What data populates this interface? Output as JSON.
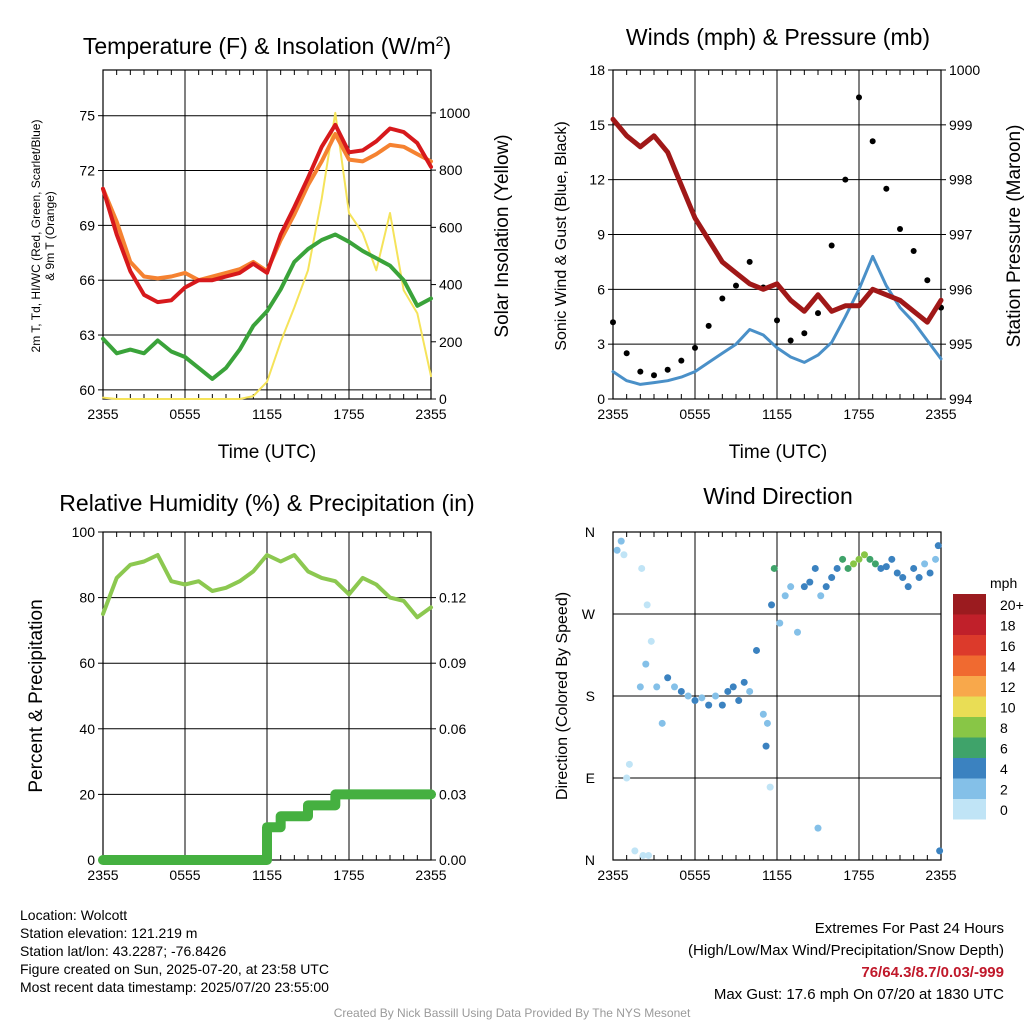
{
  "colors": {
    "temp": "#d7191c",
    "temp9m": "#f58231",
    "dew": "#3aa33a",
    "solar": "#f5e35a",
    "wind": "#4a90c8",
    "gust": "#000000",
    "pressure": "#a01818",
    "rh": "#8cc850",
    "precip": "#45b040",
    "grid": "#000000"
  },
  "time_ticks": [
    "2355",
    "0555",
    "1155",
    "1755",
    "2355"
  ],
  "panels": {
    "temperature": {
      "title_prefix": "Temperature (F) & Insolation (W/m",
      "title_sup": "2",
      "title_suffix": ")",
      "ylabel_line1": "2m T, Td, HI/WC (Red, Green, Scarlet/Blue)",
      "ylabel_line2": "& 9m T (Orange)",
      "ylabel2": "Solar Insolation (Yellow)",
      "xlabel": "Time (UTC)"
    },
    "winds": {
      "title": "Winds (mph) & Pressure (mb)",
      "ylabel": "Sonic Wind & Gust (Blue, Black)",
      "ylabel2": "Station Pressure (Maroon)",
      "xlabel": "Time (UTC)"
    },
    "humidity": {
      "title": "Relative Humidity (%) & Precipitation (in)",
      "ylabel": "Percent & Precipitation"
    },
    "direction": {
      "title": "Wind Direction",
      "ylabel": "Direction (Colored By Speed)",
      "legend_title": "mph",
      "legend": [
        {
          "label": "20+",
          "color": "#9b1b1f"
        },
        {
          "label": "18",
          "color": "#c0202a"
        },
        {
          "label": "16",
          "color": "#dc3a2b"
        },
        {
          "label": "14",
          "color": "#f06a30"
        },
        {
          "label": "12",
          "color": "#f8a84b"
        },
        {
          "label": "10",
          "color": "#e9dd55"
        },
        {
          "label": "8",
          "color": "#88c646"
        },
        {
          "label": "6",
          "color": "#3fa36a"
        },
        {
          "label": "4",
          "color": "#3b82c0"
        },
        {
          "label": "2",
          "color": "#84c0e8"
        },
        {
          "label": "0",
          "color": "#c0e4f6"
        }
      ]
    }
  },
  "chart_data": [
    {
      "type": "line",
      "title": "Temperature (F) & Insolation (W/m2)",
      "xlabel": "Time (UTC)",
      "ylabel": "2m T, Td, HI/WC (Red, Green, Scarlet/Blue) & 9m T (Orange)",
      "y2label": "Solar Insolation (Yellow)",
      "x_ticks": [
        "2355",
        "0555",
        "1155",
        "1755",
        "2355"
      ],
      "x": [
        0,
        1,
        2,
        3,
        4,
        5,
        6,
        7,
        8,
        9,
        10,
        11,
        12,
        13,
        14,
        15,
        16,
        17,
        18,
        19,
        20,
        21,
        22,
        23,
        24
      ],
      "ylim": [
        59.5,
        77.5
      ],
      "y_ticks": [
        60,
        63,
        66,
        69,
        72,
        75
      ],
      "y2lim": [
        0,
        1150
      ],
      "y2_ticks": [
        0,
        200,
        400,
        600,
        800,
        1000
      ],
      "series": [
        {
          "name": "2m T",
          "axis": "left",
          "values": [
            71,
            68.5,
            66.5,
            65.2,
            64.8,
            64.9,
            65.6,
            66,
            66,
            66.2,
            66.4,
            66.9,
            66.4,
            68.5,
            70,
            71.6,
            73.3,
            74.5,
            73,
            73.1,
            73.6,
            74.3,
            74.1,
            73.5,
            72.2
          ]
        },
        {
          "name": "9m T",
          "axis": "left",
          "values": [
            71,
            69.2,
            67,
            66.2,
            66.1,
            66.2,
            66.4,
            66,
            66.2,
            66.4,
            66.6,
            67,
            66.5,
            68.2,
            69.6,
            71.2,
            72.5,
            74,
            72.6,
            72.5,
            72.9,
            73.4,
            73.3,
            72.9,
            72.5
          ]
        },
        {
          "name": "Td",
          "axis": "left",
          "values": [
            62.8,
            62,
            62.2,
            62,
            62.7,
            62.1,
            61.8,
            61.2,
            60.6,
            61.2,
            62.2,
            63.5,
            64.3,
            65.5,
            67,
            67.7,
            68.2,
            68.5,
            68.1,
            67.6,
            67.2,
            66.8,
            66,
            64.6,
            65
          ]
        },
        {
          "name": "Solar",
          "axis": "right",
          "values": [
            5,
            0,
            0,
            0,
            0,
            0,
            0,
            0,
            0,
            0,
            0,
            10,
            60,
            200,
            320,
            450,
            700,
            1000,
            650,
            580,
            450,
            650,
            380,
            300,
            80
          ]
        }
      ]
    },
    {
      "type": "line",
      "title": "Winds (mph) & Pressure (mb)",
      "xlabel": "Time (UTC)",
      "ylabel": "Sonic Wind & Gust (Blue, Black)",
      "y2label": "Station Pressure (Maroon)",
      "x_ticks": [
        "2355",
        "0555",
        "1155",
        "1755",
        "2355"
      ],
      "x": [
        0,
        1,
        2,
        3,
        4,
        5,
        6,
        7,
        8,
        9,
        10,
        11,
        12,
        13,
        14,
        15,
        16,
        17,
        18,
        19,
        20,
        21,
        22,
        23,
        24
      ],
      "ylim": [
        0,
        18
      ],
      "y_ticks": [
        0,
        3,
        6,
        9,
        12,
        15,
        18
      ],
      "y2lim": [
        994,
        1000
      ],
      "y2_ticks": [
        994,
        995,
        996,
        997,
        998,
        999,
        1000
      ],
      "series": [
        {
          "name": "Sonic Wind",
          "axis": "left",
          "values": [
            1.5,
            1,
            0.8,
            0.9,
            1,
            1.2,
            1.5,
            2,
            2.5,
            3,
            3.8,
            3.5,
            2.8,
            2.3,
            2,
            2.4,
            3.1,
            4.5,
            6,
            7.8,
            6.2,
            5,
            4.2,
            3.2,
            2.2
          ]
        },
        {
          "name": "Gust",
          "axis": "left",
          "values": [
            4.2,
            2.5,
            1.5,
            1.3,
            1.6,
            2.1,
            2.8,
            4,
            5.5,
            6.2,
            7.5,
            6.1,
            4.3,
            3.2,
            3.6,
            4.7,
            8.4,
            12,
            16.5,
            14.1,
            11.5,
            9.3,
            8.1,
            6.5,
            5
          ]
        },
        {
          "name": "Station Pressure",
          "axis": "right",
          "values": [
            999.1,
            998.8,
            998.6,
            998.8,
            998.5,
            997.9,
            997.3,
            996.9,
            996.5,
            996.3,
            996.1,
            996,
            996.1,
            995.8,
            995.6,
            995.9,
            995.6,
            995.7,
            995.7,
            996,
            995.9,
            995.8,
            995.6,
            995.4,
            995.8
          ]
        }
      ]
    },
    {
      "type": "line",
      "title": "Relative Humidity (%) & Precipitation (in)",
      "ylabel": "Percent & Precipitation",
      "x_ticks": [
        "2355",
        "0555",
        "1155",
        "1755",
        "2355"
      ],
      "x": [
        0,
        1,
        2,
        3,
        4,
        5,
        6,
        7,
        8,
        9,
        10,
        11,
        12,
        13,
        14,
        15,
        16,
        17,
        18,
        19,
        20,
        21,
        22,
        23,
        24
      ],
      "ylim": [
        0,
        100
      ],
      "y_ticks": [
        0,
        20,
        40,
        60,
        80,
        100
      ],
      "y2lim": [
        0,
        0.15
      ],
      "y2_ticks": [
        "0.00",
        "0.03",
        "0.06",
        "0.09",
        "0.12"
      ],
      "series": [
        {
          "name": "Relative Humidity",
          "axis": "left",
          "values": [
            75,
            86,
            90,
            91,
            93,
            85,
            84,
            85,
            82,
            83,
            85,
            88,
            93,
            91,
            93,
            88,
            86,
            85,
            81,
            86,
            84,
            80,
            79,
            74,
            77
          ]
        },
        {
          "name": "Precipitation",
          "axis": "right",
          "values": [
            0,
            0,
            0,
            0,
            0,
            0,
            0,
            0,
            0,
            0,
            0,
            0,
            0.015,
            0.02,
            0.02,
            0.025,
            0.025,
            0.03,
            0.03,
            0.03,
            0.03,
            0.03,
            0.03,
            0.03,
            0.03
          ]
        }
      ]
    },
    {
      "type": "scatter",
      "title": "Wind Direction",
      "ylabel": "Direction (Colored By Speed)",
      "x_ticks": [
        "2355",
        "0555",
        "1155",
        "1755",
        "2355"
      ],
      "y_ticks": [
        "N",
        "E",
        "S",
        "W",
        "N"
      ],
      "xlim": [
        0,
        24
      ],
      "ylim": [
        0,
        360
      ],
      "points": [
        {
          "x": 0.3,
          "y": 340,
          "mph": 2
        },
        {
          "x": 0.6,
          "y": 350,
          "mph": 2
        },
        {
          "x": 0.8,
          "y": 335,
          "mph": 0
        },
        {
          "x": 1.0,
          "y": 90,
          "mph": 0
        },
        {
          "x": 1.2,
          "y": 105,
          "mph": 0
        },
        {
          "x": 1.6,
          "y": 10,
          "mph": 0
        },
        {
          "x": 2.2,
          "y": 5,
          "mph": 0
        },
        {
          "x": 2.6,
          "y": 5,
          "mph": 0
        },
        {
          "x": 2.1,
          "y": 320,
          "mph": 0
        },
        {
          "x": 2.5,
          "y": 280,
          "mph": 0
        },
        {
          "x": 2.0,
          "y": 190,
          "mph": 2
        },
        {
          "x": 2.4,
          "y": 215,
          "mph": 2
        },
        {
          "x": 2.8,
          "y": 240,
          "mph": 0
        },
        {
          "x": 3.2,
          "y": 190,
          "mph": 2
        },
        {
          "x": 3.6,
          "y": 150,
          "mph": 2
        },
        {
          "x": 4.0,
          "y": 200,
          "mph": 4
        },
        {
          "x": 4.5,
          "y": 190,
          "mph": 2
        },
        {
          "x": 5.0,
          "y": 185,
          "mph": 4
        },
        {
          "x": 5.5,
          "y": 180,
          "mph": 2
        },
        {
          "x": 6.0,
          "y": 175,
          "mph": 4
        },
        {
          "x": 6.5,
          "y": 178,
          "mph": 2
        },
        {
          "x": 7.0,
          "y": 170,
          "mph": 4
        },
        {
          "x": 7.5,
          "y": 180,
          "mph": 2
        },
        {
          "x": 8.0,
          "y": 170,
          "mph": 4
        },
        {
          "x": 8.4,
          "y": 185,
          "mph": 4
        },
        {
          "x": 8.8,
          "y": 190,
          "mph": 4
        },
        {
          "x": 9.2,
          "y": 175,
          "mph": 4
        },
        {
          "x": 9.6,
          "y": 195,
          "mph": 4
        },
        {
          "x": 10.0,
          "y": 185,
          "mph": 2
        },
        {
          "x": 10.5,
          "y": 230,
          "mph": 4
        },
        {
          "x": 11.0,
          "y": 160,
          "mph": 2
        },
        {
          "x": 11.3,
          "y": 150,
          "mph": 2
        },
        {
          "x": 11.2,
          "y": 125,
          "mph": 4
        },
        {
          "x": 11.5,
          "y": 80,
          "mph": 0
        },
        {
          "x": 11.6,
          "y": 280,
          "mph": 4
        },
        {
          "x": 11.8,
          "y": 320,
          "mph": 6
        },
        {
          "x": 12.2,
          "y": 260,
          "mph": 2
        },
        {
          "x": 12.6,
          "y": 290,
          "mph": 2
        },
        {
          "x": 13.0,
          "y": 300,
          "mph": 2
        },
        {
          "x": 13.5,
          "y": 250,
          "mph": 2
        },
        {
          "x": 14.0,
          "y": 300,
          "mph": 4
        },
        {
          "x": 14.4,
          "y": 305,
          "mph": 4
        },
        {
          "x": 14.8,
          "y": 320,
          "mph": 4
        },
        {
          "x": 15.0,
          "y": 35,
          "mph": 2
        },
        {
          "x": 15.2,
          "y": 290,
          "mph": 2
        },
        {
          "x": 15.6,
          "y": 300,
          "mph": 4
        },
        {
          "x": 16.0,
          "y": 310,
          "mph": 4
        },
        {
          "x": 16.4,
          "y": 320,
          "mph": 4
        },
        {
          "x": 16.8,
          "y": 330,
          "mph": 6
        },
        {
          "x": 17.2,
          "y": 320,
          "mph": 6
        },
        {
          "x": 17.6,
          "y": 325,
          "mph": 8
        },
        {
          "x": 18.0,
          "y": 330,
          "mph": 8
        },
        {
          "x": 18.4,
          "y": 335,
          "mph": 8
        },
        {
          "x": 18.8,
          "y": 330,
          "mph": 6
        },
        {
          "x": 19.2,
          "y": 325,
          "mph": 6
        },
        {
          "x": 19.6,
          "y": 320,
          "mph": 4
        },
        {
          "x": 20.0,
          "y": 322,
          "mph": 4
        },
        {
          "x": 20.4,
          "y": 330,
          "mph": 4
        },
        {
          "x": 20.8,
          "y": 315,
          "mph": 4
        },
        {
          "x": 21.2,
          "y": 310,
          "mph": 4
        },
        {
          "x": 21.6,
          "y": 300,
          "mph": 4
        },
        {
          "x": 22.0,
          "y": 320,
          "mph": 4
        },
        {
          "x": 22.4,
          "y": 310,
          "mph": 4
        },
        {
          "x": 22.8,
          "y": 325,
          "mph": 2
        },
        {
          "x": 23.2,
          "y": 315,
          "mph": 4
        },
        {
          "x": 23.6,
          "y": 330,
          "mph": 2
        },
        {
          "x": 23.9,
          "y": 10,
          "mph": 4
        },
        {
          "x": 23.8,
          "y": 345,
          "mph": 4
        }
      ]
    }
  ],
  "info": {
    "location": "Location: Wolcott",
    "elevation": "Station elevation: 121.219 m",
    "latlon": "Station lat/lon: 43.2287; -76.8426",
    "created": "Figure created on Sun, 2025-07-20, at 23:58 UTC",
    "recent": "Most recent data timestamp: 2025/07/20 23:55:00"
  },
  "extremes": {
    "heading": "Extremes For Past 24 Hours",
    "subheading": "(High/Low/Max Wind/Precipitation/Snow Depth)",
    "values": "76/64.3/8.7/0.03/-999",
    "max_gust": "Max Gust: 17.6 mph On 07/20 at 1830 UTC"
  },
  "credit": "Created By Nick Bassill Using Data Provided By The NYS Mesonet"
}
